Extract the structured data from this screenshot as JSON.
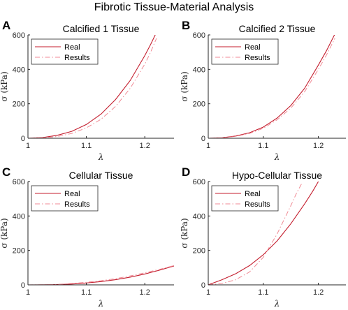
{
  "figure": {
    "title": "Fibrotic Tissue-Material Analysis"
  },
  "colors": {
    "real": "#c41e2e",
    "results": "#f08a94"
  },
  "chart_data": [
    {
      "letter": "A",
      "type": "line",
      "title": "Calcified 1 Tissue",
      "xlabel": "λ",
      "ylabel": "σ (kPa)",
      "xlim": [
        1,
        1.25
      ],
      "ylim": [
        0,
        600
      ],
      "xticks": [
        1,
        1.1,
        1.2
      ],
      "yticks": [
        0,
        200,
        400,
        600
      ],
      "legend": "top-left",
      "series": [
        {
          "name": "Real",
          "style": "solid",
          "x": [
            1.0,
            1.025,
            1.05,
            1.075,
            1.1,
            1.125,
            1.15,
            1.175,
            1.2,
            1.21,
            1.22
          ],
          "y": [
            0,
            4,
            17,
            40,
            80,
            140,
            225,
            335,
            480,
            545,
            615
          ]
        },
        {
          "name": "Results",
          "style": "dashdot",
          "x": [
            1.0,
            1.025,
            1.05,
            1.075,
            1.1,
            1.125,
            1.15,
            1.175,
            1.2,
            1.21,
            1.22
          ],
          "y": [
            0,
            2,
            10,
            28,
            60,
            110,
            185,
            290,
            430,
            500,
            580
          ]
        }
      ]
    },
    {
      "letter": "B",
      "type": "line",
      "title": "Calcified 2 Tissue",
      "xlabel": "λ",
      "ylabel": "σ (kPa)",
      "xlim": [
        1,
        1.25
      ],
      "ylim": [
        0,
        600
      ],
      "xticks": [
        1,
        1.1,
        1.2
      ],
      "yticks": [
        0,
        200,
        400,
        600
      ],
      "legend": "top-left",
      "series": [
        {
          "name": "Real",
          "style": "solid",
          "x": [
            1.0,
            1.025,
            1.05,
            1.075,
            1.1,
            1.125,
            1.15,
            1.175,
            1.2,
            1.215,
            1.23
          ],
          "y": [
            0,
            3,
            13,
            32,
            65,
            117,
            190,
            290,
            425,
            510,
            605
          ]
        },
        {
          "name": "Results",
          "style": "dashdot",
          "x": [
            1.0,
            1.025,
            1.05,
            1.075,
            1.1,
            1.125,
            1.15,
            1.175,
            1.2,
            1.215,
            1.23
          ],
          "y": [
            0,
            2,
            11,
            28,
            58,
            107,
            175,
            270,
            400,
            485,
            580
          ]
        }
      ]
    },
    {
      "letter": "C",
      "type": "line",
      "title": "Cellular Tissue",
      "xlabel": "λ",
      "ylabel": "σ (kPa)",
      "xlim": [
        1,
        1.25
      ],
      "ylim": [
        0,
        600
      ],
      "xticks": [
        1,
        1.1,
        1.2
      ],
      "yticks": [
        0,
        200,
        400,
        600
      ],
      "legend": "top-left",
      "series": [
        {
          "name": "Real",
          "style": "solid",
          "x": [
            1.0,
            1.025,
            1.05,
            1.075,
            1.1,
            1.125,
            1.15,
            1.175,
            1.2,
            1.225,
            1.25
          ],
          "y": [
            0,
            0.5,
            2,
            5,
            11,
            19,
            30,
            45,
            63,
            85,
            110
          ]
        },
        {
          "name": "Results",
          "style": "dashdot",
          "x": [
            1.0,
            1.025,
            1.05,
            1.075,
            1.1,
            1.125,
            1.15,
            1.175,
            1.2,
            1.225,
            1.25
          ],
          "y": [
            0,
            1,
            3,
            8,
            15,
            24,
            36,
            52,
            70,
            90,
            112
          ]
        }
      ]
    },
    {
      "letter": "D",
      "type": "line",
      "title": "Hypo-Cellular Tissue",
      "xlabel": "λ",
      "ylabel": "σ (kPa)",
      "xlim": [
        1,
        1.25
      ],
      "ylim": [
        0,
        600
      ],
      "xticks": [
        1,
        1.1,
        1.2
      ],
      "yticks": [
        0,
        200,
        400,
        600
      ],
      "legend": "top-left",
      "series": [
        {
          "name": "Real",
          "style": "solid",
          "x": [
            1.0,
            1.025,
            1.05,
            1.075,
            1.1,
            1.125,
            1.15,
            1.175,
            1.19,
            1.2
          ],
          "y": [
            0,
            30,
            65,
            112,
            175,
            255,
            355,
            470,
            545,
            600
          ]
        },
        {
          "name": "Results",
          "style": "dashdot",
          "x": [
            1.0,
            1.025,
            1.05,
            1.075,
            1.1,
            1.125,
            1.15,
            1.16,
            1.17
          ],
          "y": [
            0,
            8,
            30,
            75,
            160,
            295,
            460,
            530,
            590
          ]
        }
      ]
    }
  ]
}
